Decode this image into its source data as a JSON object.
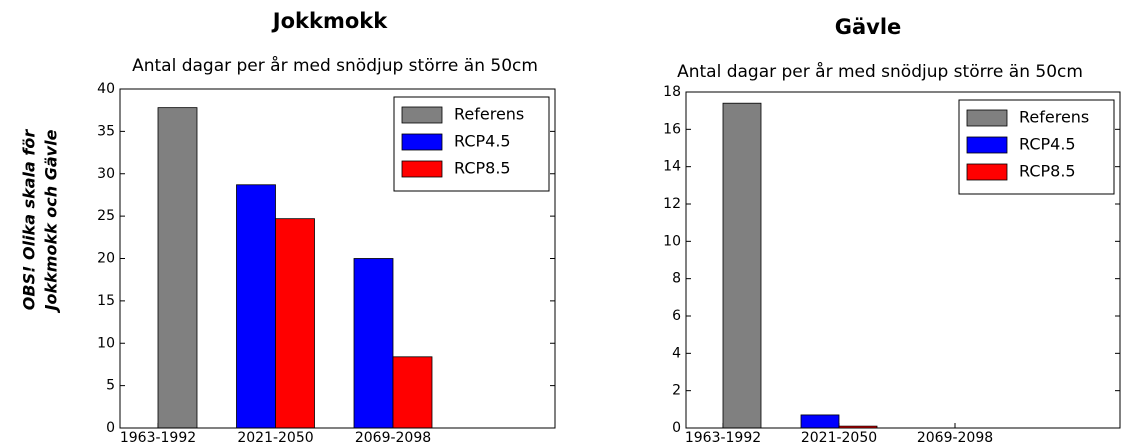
{
  "note": {
    "lines": [
      "OBS! Olika skala för",
      "Jokkmokk och Gävle"
    ]
  },
  "chart_data": [
    {
      "type": "bar",
      "title": "Jokkmokk",
      "subtitle": "Antal dagar per år med snödjup större än 50cm",
      "categories": [
        "1963-1992",
        "2021-2050",
        "2069-2098"
      ],
      "series": [
        {
          "name": "Referens",
          "color": "#808080",
          "values": [
            37.8,
            null,
            null
          ]
        },
        {
          "name": "RCP4.5",
          "color": "#0000ff",
          "values": [
            null,
            28.7,
            20.0
          ]
        },
        {
          "name": "RCP8.5",
          "color": "#ff0000",
          "values": [
            null,
            24.7,
            8.4
          ]
        }
      ],
      "ylim": [
        0,
        40
      ],
      "yticks": [
        0,
        5,
        10,
        15,
        20,
        25,
        30,
        35,
        40
      ],
      "grid": false,
      "legend": "upper right"
    },
    {
      "type": "bar",
      "title": "Gävle",
      "subtitle": "Antal dagar per år med snödjup större än 50cm",
      "categories": [
        "1963-1992",
        "2021-2050",
        "2069-2098"
      ],
      "series": [
        {
          "name": "Referens",
          "color": "#808080",
          "values": [
            17.4,
            null,
            null
          ]
        },
        {
          "name": "RCP4.5",
          "color": "#0000ff",
          "values": [
            null,
            0.7,
            0
          ]
        },
        {
          "name": "RCP8.5",
          "color": "#ff0000",
          "values": [
            null,
            0.1,
            0
          ]
        }
      ],
      "ylim": [
        0,
        18
      ],
      "yticks": [
        0,
        2,
        4,
        6,
        8,
        10,
        12,
        14,
        16,
        18
      ],
      "grid": false,
      "legend": "upper right"
    }
  ]
}
